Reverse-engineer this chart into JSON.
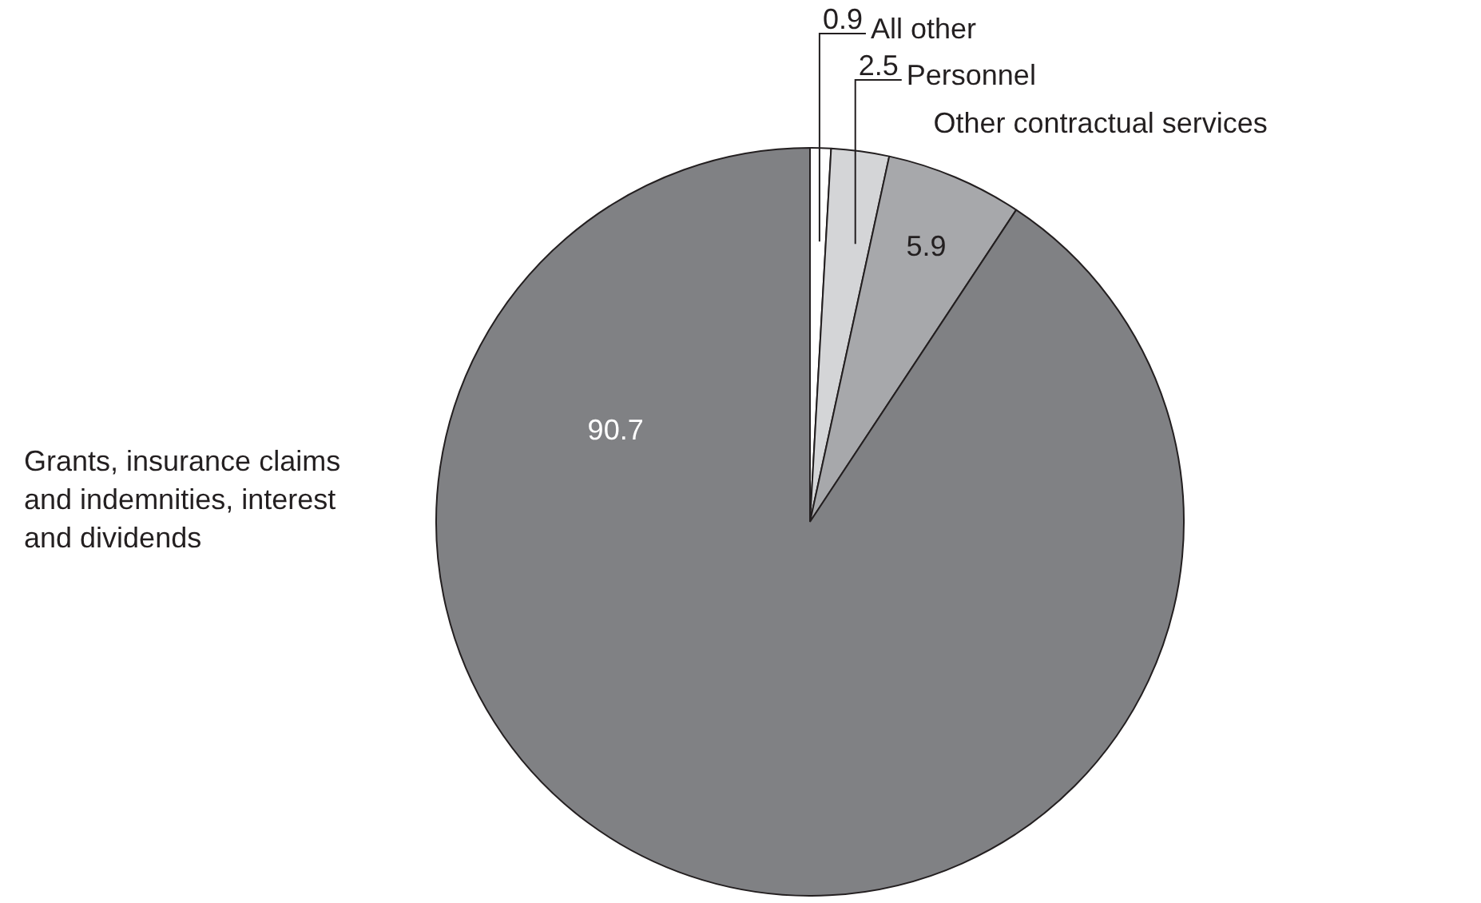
{
  "chart_data": {
    "type": "pie",
    "categories": [
      "All other",
      "Personnel",
      "Other contractual services",
      "Grants, insurance claims and indemnities, interest and dividends"
    ],
    "values": [
      0.9,
      2.5,
      5.9,
      90.7
    ],
    "colors": [
      "#ffffff",
      "#d4d5d7",
      "#a7a8ab",
      "#808184"
    ],
    "data_labels": true
  }
}
